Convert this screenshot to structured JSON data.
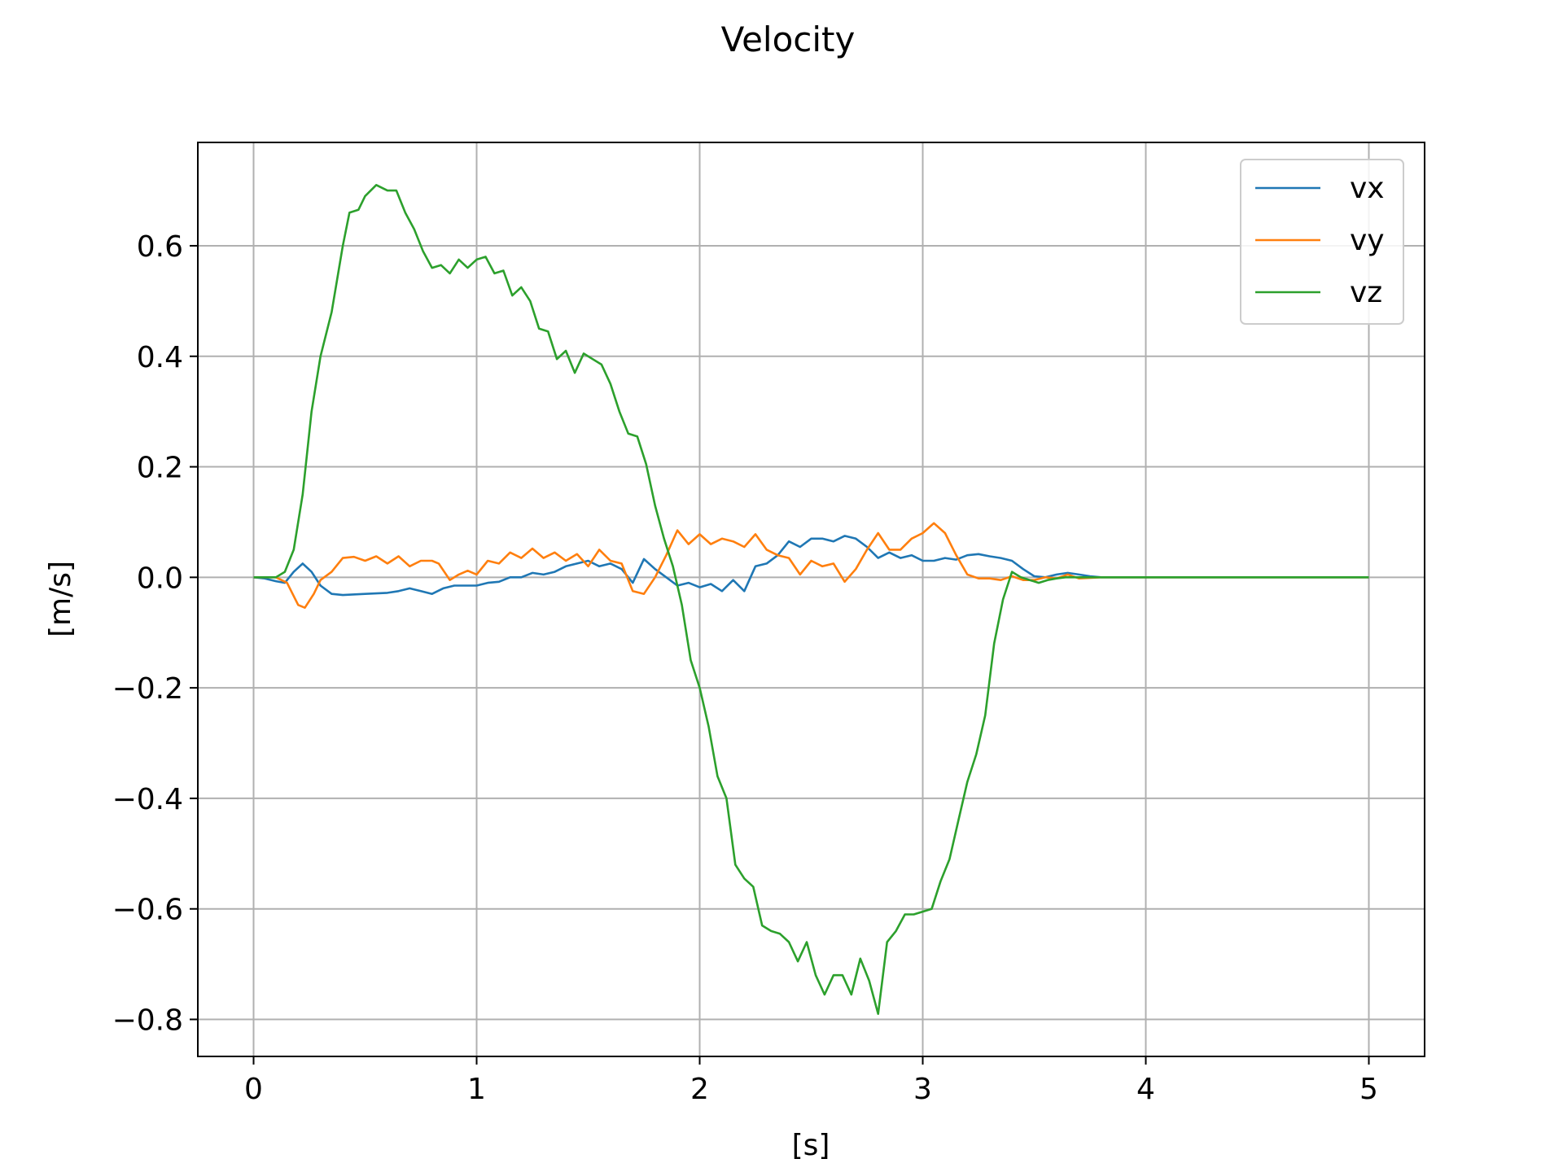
{
  "chart_data": {
    "type": "line",
    "title": "Velocity",
    "xlabel": "[s]",
    "ylabel": "[m/s]",
    "xlim": [
      -0.25,
      5.25
    ],
    "ylim": [
      -0.867,
      0.787
    ],
    "xticks": [
      0,
      1,
      2,
      3,
      4,
      5
    ],
    "xtick_labels": [
      "0",
      "1",
      "2",
      "3",
      "4",
      "5"
    ],
    "yticks": [
      0.6,
      0.4,
      0.2,
      0.0,
      -0.2,
      -0.4,
      -0.6,
      -0.8
    ],
    "ytick_labels": [
      "0.6",
      "0.4",
      "0.2",
      "0.0",
      "−0.2",
      "−0.4",
      "−0.6",
      "−0.8"
    ],
    "grid": true,
    "legend_position": "top-right",
    "series": [
      {
        "name": "vx",
        "color": "#1f77b4",
        "points": [
          [
            0.0,
            0.0
          ],
          [
            0.05,
            -0.002
          ],
          [
            0.1,
            -0.007
          ],
          [
            0.14,
            -0.01
          ],
          [
            0.18,
            0.01
          ],
          [
            0.22,
            0.025
          ],
          [
            0.26,
            0.01
          ],
          [
            0.3,
            -0.015
          ],
          [
            0.35,
            -0.03
          ],
          [
            0.4,
            -0.032
          ],
          [
            0.5,
            -0.03
          ],
          [
            0.6,
            -0.028
          ],
          [
            0.65,
            -0.025
          ],
          [
            0.7,
            -0.02
          ],
          [
            0.75,
            -0.025
          ],
          [
            0.8,
            -0.03
          ],
          [
            0.85,
            -0.02
          ],
          [
            0.9,
            -0.015
          ],
          [
            1.0,
            -0.015
          ],
          [
            1.05,
            -0.01
          ],
          [
            1.1,
            -0.008
          ],
          [
            1.15,
            0.0
          ],
          [
            1.2,
            0.0
          ],
          [
            1.25,
            0.008
          ],
          [
            1.3,
            0.005
          ],
          [
            1.35,
            0.01
          ],
          [
            1.4,
            0.02
          ],
          [
            1.45,
            0.025
          ],
          [
            1.5,
            0.03
          ],
          [
            1.55,
            0.02
          ],
          [
            1.6,
            0.025
          ],
          [
            1.65,
            0.015
          ],
          [
            1.7,
            -0.01
          ],
          [
            1.75,
            0.033
          ],
          [
            1.8,
            0.015
          ],
          [
            1.85,
            0.0
          ],
          [
            1.9,
            -0.015
          ],
          [
            1.95,
            -0.01
          ],
          [
            2.0,
            -0.018
          ],
          [
            2.05,
            -0.012
          ],
          [
            2.1,
            -0.025
          ],
          [
            2.15,
            -0.005
          ],
          [
            2.2,
            -0.025
          ],
          [
            2.25,
            0.02
          ],
          [
            2.3,
            0.025
          ],
          [
            2.35,
            0.04
          ],
          [
            2.4,
            0.065
          ],
          [
            2.45,
            0.055
          ],
          [
            2.5,
            0.07
          ],
          [
            2.55,
            0.07
          ],
          [
            2.6,
            0.065
          ],
          [
            2.65,
            0.075
          ],
          [
            2.7,
            0.07
          ],
          [
            2.75,
            0.055
          ],
          [
            2.8,
            0.035
          ],
          [
            2.85,
            0.045
          ],
          [
            2.9,
            0.035
          ],
          [
            2.95,
            0.04
          ],
          [
            3.0,
            0.03
          ],
          [
            3.05,
            0.03
          ],
          [
            3.1,
            0.035
          ],
          [
            3.15,
            0.032
          ],
          [
            3.2,
            0.04
          ],
          [
            3.25,
            0.042
          ],
          [
            3.3,
            0.038
          ],
          [
            3.35,
            0.035
          ],
          [
            3.4,
            0.03
          ],
          [
            3.45,
            0.015
          ],
          [
            3.5,
            0.002
          ],
          [
            3.55,
            0.0
          ],
          [
            3.6,
            0.005
          ],
          [
            3.65,
            0.008
          ],
          [
            3.7,
            0.005
          ],
          [
            3.75,
            0.002
          ],
          [
            3.8,
            0.0
          ],
          [
            4.0,
            0.0
          ],
          [
            4.5,
            0.0
          ],
          [
            5.0,
            0.0
          ]
        ]
      },
      {
        "name": "vy",
        "color": "#ff7f0e",
        "points": [
          [
            0.0,
            0.0
          ],
          [
            0.1,
            0.0
          ],
          [
            0.15,
            -0.01
          ],
          [
            0.2,
            -0.05
          ],
          [
            0.23,
            -0.055
          ],
          [
            0.27,
            -0.03
          ],
          [
            0.3,
            -0.005
          ],
          [
            0.35,
            0.01
          ],
          [
            0.4,
            0.035
          ],
          [
            0.45,
            0.037
          ],
          [
            0.5,
            0.03
          ],
          [
            0.55,
            0.038
          ],
          [
            0.6,
            0.025
          ],
          [
            0.65,
            0.038
          ],
          [
            0.7,
            0.02
          ],
          [
            0.75,
            0.03
          ],
          [
            0.8,
            0.03
          ],
          [
            0.83,
            0.025
          ],
          [
            0.88,
            -0.005
          ],
          [
            0.92,
            0.005
          ],
          [
            0.96,
            0.012
          ],
          [
            1.0,
            0.005
          ],
          [
            1.05,
            0.03
          ],
          [
            1.1,
            0.025
          ],
          [
            1.15,
            0.045
          ],
          [
            1.2,
            0.035
          ],
          [
            1.25,
            0.052
          ],
          [
            1.3,
            0.035
          ],
          [
            1.35,
            0.045
          ],
          [
            1.4,
            0.03
          ],
          [
            1.45,
            0.042
          ],
          [
            1.5,
            0.02
          ],
          [
            1.55,
            0.05
          ],
          [
            1.6,
            0.03
          ],
          [
            1.65,
            0.025
          ],
          [
            1.7,
            -0.025
          ],
          [
            1.75,
            -0.03
          ],
          [
            1.8,
            0.0
          ],
          [
            1.85,
            0.04
          ],
          [
            1.9,
            0.085
          ],
          [
            1.95,
            0.06
          ],
          [
            2.0,
            0.078
          ],
          [
            2.05,
            0.06
          ],
          [
            2.1,
            0.07
          ],
          [
            2.15,
            0.065
          ],
          [
            2.2,
            0.055
          ],
          [
            2.25,
            0.078
          ],
          [
            2.3,
            0.05
          ],
          [
            2.35,
            0.04
          ],
          [
            2.4,
            0.035
          ],
          [
            2.45,
            0.005
          ],
          [
            2.5,
            0.03
          ],
          [
            2.55,
            0.02
          ],
          [
            2.6,
            0.025
          ],
          [
            2.65,
            -0.008
          ],
          [
            2.7,
            0.015
          ],
          [
            2.75,
            0.05
          ],
          [
            2.8,
            0.08
          ],
          [
            2.85,
            0.05
          ],
          [
            2.9,
            0.05
          ],
          [
            2.95,
            0.07
          ],
          [
            3.0,
            0.08
          ],
          [
            3.05,
            0.098
          ],
          [
            3.1,
            0.08
          ],
          [
            3.15,
            0.04
          ],
          [
            3.2,
            0.005
          ],
          [
            3.25,
            -0.002
          ],
          [
            3.3,
            -0.002
          ],
          [
            3.35,
            -0.005
          ],
          [
            3.4,
            0.002
          ],
          [
            3.45,
            -0.005
          ],
          [
            3.5,
            -0.005
          ],
          [
            3.55,
            0.0
          ],
          [
            3.6,
            -0.002
          ],
          [
            3.65,
            0.005
          ],
          [
            3.7,
            -0.002
          ],
          [
            3.8,
            0.0
          ],
          [
            4.0,
            0.0
          ],
          [
            4.5,
            0.0
          ],
          [
            5.0,
            0.0
          ]
        ]
      },
      {
        "name": "vz",
        "color": "#2ca02c",
        "points": [
          [
            0.0,
            0.0
          ],
          [
            0.1,
            0.0
          ],
          [
            0.14,
            0.01
          ],
          [
            0.18,
            0.05
          ],
          [
            0.22,
            0.15
          ],
          [
            0.26,
            0.3
          ],
          [
            0.3,
            0.4
          ],
          [
            0.35,
            0.48
          ],
          [
            0.4,
            0.6
          ],
          [
            0.43,
            0.66
          ],
          [
            0.47,
            0.665
          ],
          [
            0.5,
            0.69
          ],
          [
            0.55,
            0.71
          ],
          [
            0.6,
            0.7
          ],
          [
            0.64,
            0.7
          ],
          [
            0.68,
            0.66
          ],
          [
            0.72,
            0.63
          ],
          [
            0.76,
            0.59
          ],
          [
            0.8,
            0.56
          ],
          [
            0.84,
            0.565
          ],
          [
            0.88,
            0.55
          ],
          [
            0.92,
            0.575
          ],
          [
            0.96,
            0.56
          ],
          [
            1.0,
            0.575
          ],
          [
            1.04,
            0.58
          ],
          [
            1.08,
            0.55
          ],
          [
            1.12,
            0.555
          ],
          [
            1.16,
            0.51
          ],
          [
            1.2,
            0.525
          ],
          [
            1.24,
            0.5
          ],
          [
            1.28,
            0.45
          ],
          [
            1.32,
            0.445
          ],
          [
            1.36,
            0.395
          ],
          [
            1.4,
            0.41
          ],
          [
            1.44,
            0.37
          ],
          [
            1.48,
            0.405
          ],
          [
            1.52,
            0.395
          ],
          [
            1.56,
            0.385
          ],
          [
            1.6,
            0.35
          ],
          [
            1.64,
            0.3
          ],
          [
            1.68,
            0.26
          ],
          [
            1.72,
            0.255
          ],
          [
            1.76,
            0.205
          ],
          [
            1.8,
            0.13
          ],
          [
            1.84,
            0.07
          ],
          [
            1.88,
            0.02
          ],
          [
            1.92,
            -0.05
          ],
          [
            1.96,
            -0.15
          ],
          [
            2.0,
            -0.2
          ],
          [
            2.04,
            -0.27
          ],
          [
            2.08,
            -0.36
          ],
          [
            2.12,
            -0.4
          ],
          [
            2.16,
            -0.52
          ],
          [
            2.2,
            -0.545
          ],
          [
            2.24,
            -0.56
          ],
          [
            2.28,
            -0.63
          ],
          [
            2.32,
            -0.64
          ],
          [
            2.36,
            -0.645
          ],
          [
            2.4,
            -0.66
          ],
          [
            2.44,
            -0.695
          ],
          [
            2.48,
            -0.66
          ],
          [
            2.52,
            -0.72
          ],
          [
            2.56,
            -0.755
          ],
          [
            2.6,
            -0.72
          ],
          [
            2.64,
            -0.72
          ],
          [
            2.68,
            -0.755
          ],
          [
            2.72,
            -0.69
          ],
          [
            2.76,
            -0.73
          ],
          [
            2.8,
            -0.79
          ],
          [
            2.84,
            -0.66
          ],
          [
            2.88,
            -0.64
          ],
          [
            2.92,
            -0.61
          ],
          [
            2.96,
            -0.61
          ],
          [
            3.0,
            -0.605
          ],
          [
            3.04,
            -0.6
          ],
          [
            3.08,
            -0.55
          ],
          [
            3.12,
            -0.51
          ],
          [
            3.16,
            -0.44
          ],
          [
            3.2,
            -0.37
          ],
          [
            3.24,
            -0.32
          ],
          [
            3.28,
            -0.25
          ],
          [
            3.32,
            -0.12
          ],
          [
            3.36,
            -0.04
          ],
          [
            3.4,
            0.01
          ],
          [
            3.44,
            0.0
          ],
          [
            3.48,
            -0.005
          ],
          [
            3.52,
            -0.01
          ],
          [
            3.56,
            -0.005
          ],
          [
            3.6,
            -0.002
          ],
          [
            3.64,
            0.0
          ],
          [
            3.7,
            0.0
          ],
          [
            4.0,
            0.0
          ],
          [
            4.5,
            0.0
          ],
          [
            5.0,
            0.0
          ]
        ]
      }
    ]
  }
}
